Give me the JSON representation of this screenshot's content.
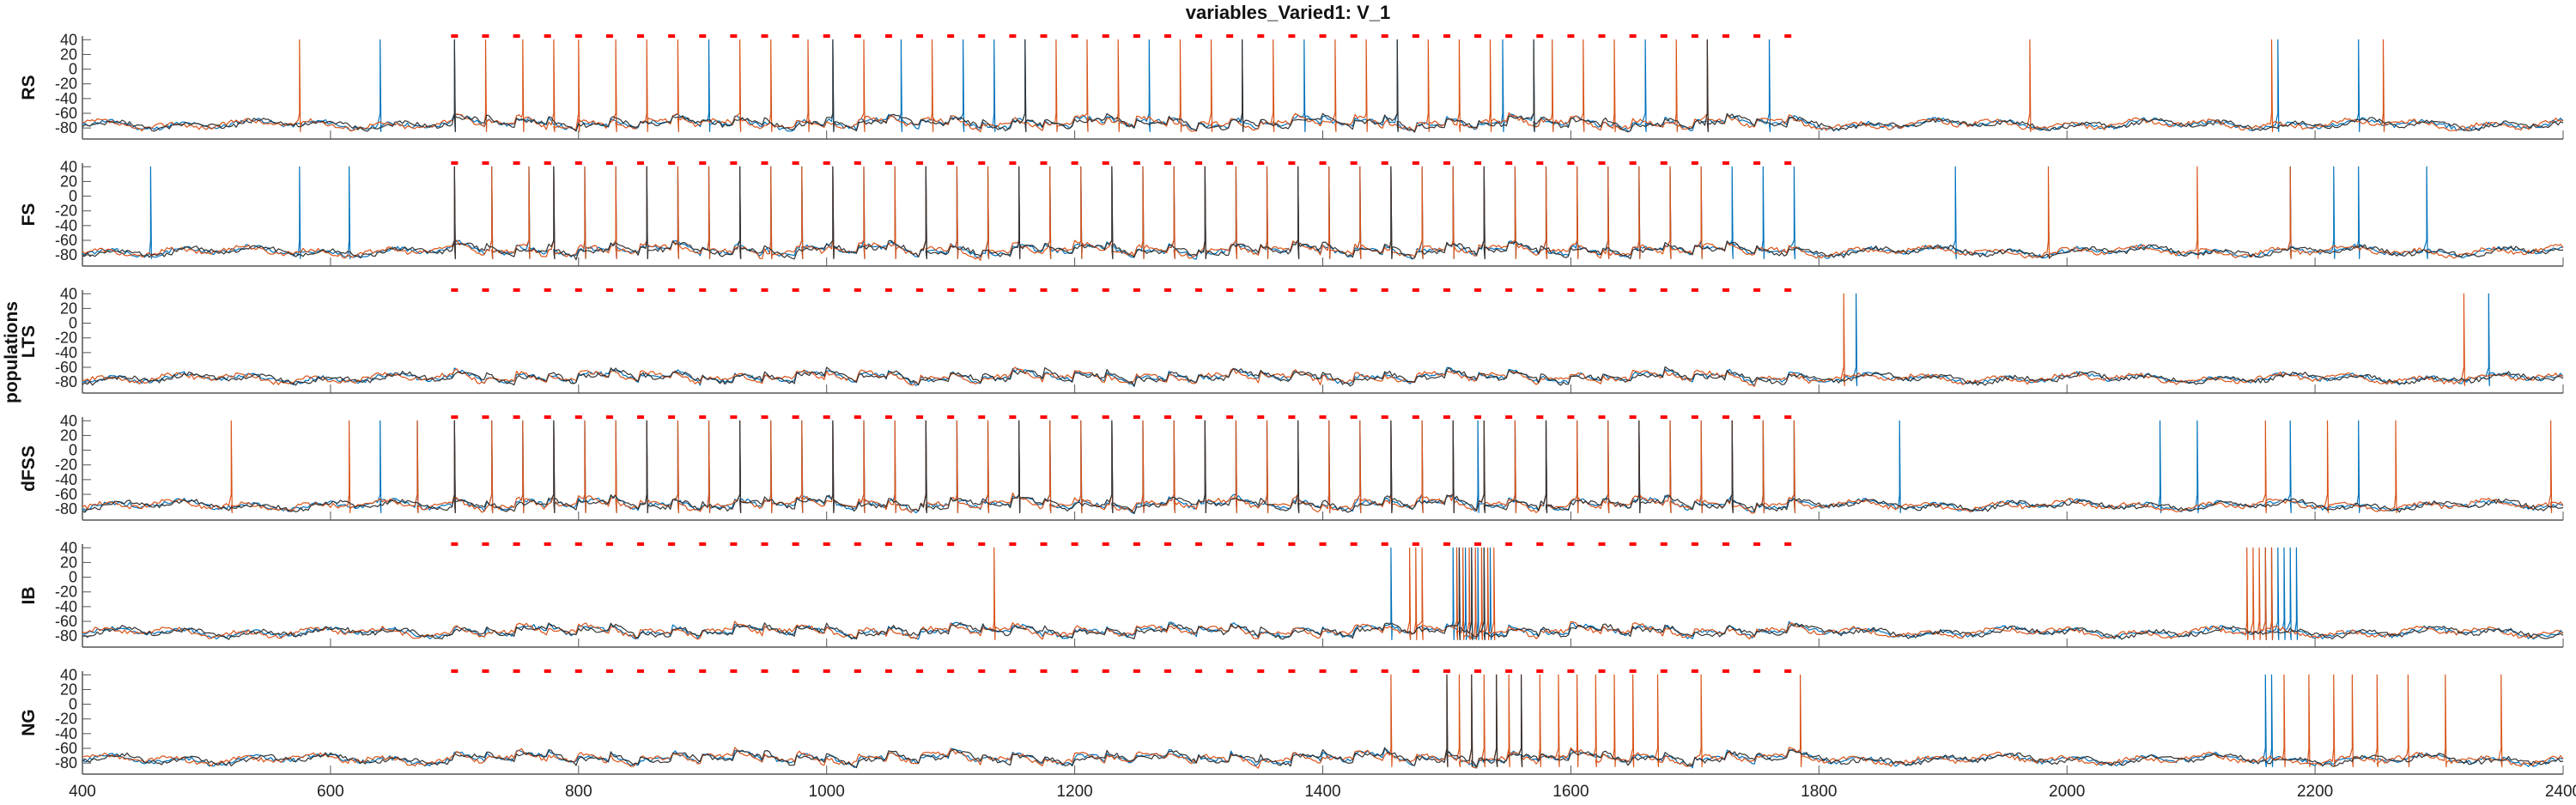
{
  "title": "variables_Varied1: V_1",
  "ylabel": "populations",
  "colors": {
    "series1": "#0072BD",
    "series2": "#D95319",
    "series3": "#333333",
    "stim": "#ff0000",
    "axis": "#555555"
  },
  "chart_data": {
    "type": "line",
    "title": "variables_Varied1: V_1",
    "ylabel": "populations",
    "xlim": [
      400,
      2400
    ],
    "xticks": [
      "400",
      "600",
      "800",
      "1000",
      "1200",
      "1400",
      "1600",
      "1800",
      "2000",
      "2200",
      "2400"
    ],
    "yticks": [
      "40",
      "20",
      "0",
      "-20",
      "-40",
      "-60",
      "-80"
    ],
    "ylim": [
      -95,
      45
    ],
    "grid": false,
    "stim_range": [
      700,
      1790
    ],
    "stim_period": 25,
    "stim_level": 45,
    "panels": [
      {
        "name": "RS",
        "spikes": {
          "s1": [
            640,
            700,
            905,
            1005,
            1060,
            1110,
            1135,
            1160,
            1260,
            1335,
            1385,
            1460,
            1545,
            1570,
            1660,
            1760,
            2170,
            2235
          ],
          "s2": [
            575,
            725,
            755,
            780,
            800,
            830,
            855,
            880,
            930,
            955,
            985,
            1030,
            1085,
            1185,
            1210,
            1235,
            1285,
            1310,
            1360,
            1410,
            1435,
            1485,
            1510,
            1535,
            1585,
            1610,
            1635,
            1685,
            1710,
            1970,
            2165,
            2255
          ],
          "s3": [
            700,
            1005,
            1160,
            1335,
            1460,
            1570,
            1710
          ]
        }
      },
      {
        "name": "FS",
        "spikes": {
          "s1": [
            455,
            575,
            615,
            700,
            730,
            760,
            780,
            805,
            830,
            855,
            880,
            905,
            930,
            955,
            980,
            1005,
            1030,
            1055,
            1080,
            1105,
            1130,
            1155,
            1180,
            1205,
            1230,
            1255,
            1280,
            1305,
            1330,
            1355,
            1380,
            1405,
            1430,
            1455,
            1480,
            1505,
            1530,
            1555,
            1580,
            1605,
            1630,
            1655,
            1680,
            1705,
            1730,
            1755,
            1780,
            1910,
            2180,
            2215,
            2235,
            2290
          ],
          "s2": [
            700,
            730,
            760,
            780,
            805,
            830,
            855,
            880,
            905,
            930,
            955,
            980,
            1005,
            1030,
            1055,
            1080,
            1105,
            1130,
            1155,
            1180,
            1205,
            1230,
            1255,
            1280,
            1305,
            1330,
            1355,
            1380,
            1405,
            1430,
            1455,
            1480,
            1505,
            1530,
            1555,
            1580,
            1605,
            1630,
            1655,
            1680,
            1705,
            1985,
            2105,
            2180
          ],
          "s3": [
            700,
            780,
            855,
            930,
            1005,
            1080,
            1155,
            1230,
            1305,
            1380,
            1455,
            1530
          ]
        }
      },
      {
        "name": "LTS",
        "spikes": {
          "s1": [
            1830,
            2340
          ],
          "s2": [
            1820,
            2320
          ],
          "s3": []
        }
      },
      {
        "name": "dFSS",
        "spikes": {
          "s1": [
            640,
            670,
            700,
            730,
            755,
            780,
            805,
            830,
            855,
            880,
            905,
            930,
            955,
            980,
            1005,
            1030,
            1055,
            1080,
            1105,
            1130,
            1155,
            1180,
            1205,
            1230,
            1255,
            1280,
            1305,
            1330,
            1355,
            1380,
            1405,
            1430,
            1455,
            1480,
            1505,
            1525,
            1555,
            1580,
            1605,
            1630,
            1655,
            1680,
            1705,
            1730,
            1755,
            1780,
            1865,
            2075,
            2105,
            2180,
            2235
          ],
          "s2": [
            520,
            615,
            670,
            700,
            730,
            755,
            780,
            805,
            830,
            855,
            880,
            905,
            930,
            955,
            980,
            1005,
            1030,
            1055,
            1080,
            1105,
            1130,
            1155,
            1180,
            1205,
            1230,
            1255,
            1280,
            1305,
            1330,
            1355,
            1380,
            1405,
            1430,
            1455,
            1480,
            1505,
            1530,
            1555,
            1580,
            1605,
            1630,
            1655,
            1680,
            1705,
            1730,
            1755,
            1780,
            2160,
            2210,
            2265,
            2390
          ],
          "s3": [
            700,
            780,
            855,
            930,
            1005,
            1080,
            1155,
            1230,
            1305,
            1380,
            1455,
            1505,
            1530,
            1580,
            1655,
            1730
          ]
        }
      },
      {
        "name": "IB",
        "spikes": {
          "s1": [
            1455,
            1505,
            1510,
            1515,
            1520,
            1525,
            1530,
            1535,
            2160,
            2165,
            2170,
            2175,
            2180,
            2185
          ],
          "s2": [
            1135,
            1470,
            1475,
            1480,
            1508,
            1513,
            1518,
            1523,
            1528,
            1533,
            1538,
            2145,
            2150,
            2155,
            2160,
            2165
          ],
          "s3": [
            1510,
            1520,
            1530
          ]
        }
      },
      {
        "name": "NG",
        "spikes": {
          "s1": [
            2160,
            2165
          ],
          "s2": [
            1455,
            1500,
            1510,
            1520,
            1530,
            1540,
            1550,
            1560,
            1575,
            1590,
            1605,
            1620,
            1635,
            1650,
            1670,
            1705,
            1785,
            2175,
            2195,
            2215,
            2230,
            2250,
            2275,
            2305,
            2350
          ],
          "s3": [
            1500,
            1520,
            1540,
            1560
          ]
        }
      }
    ]
  }
}
